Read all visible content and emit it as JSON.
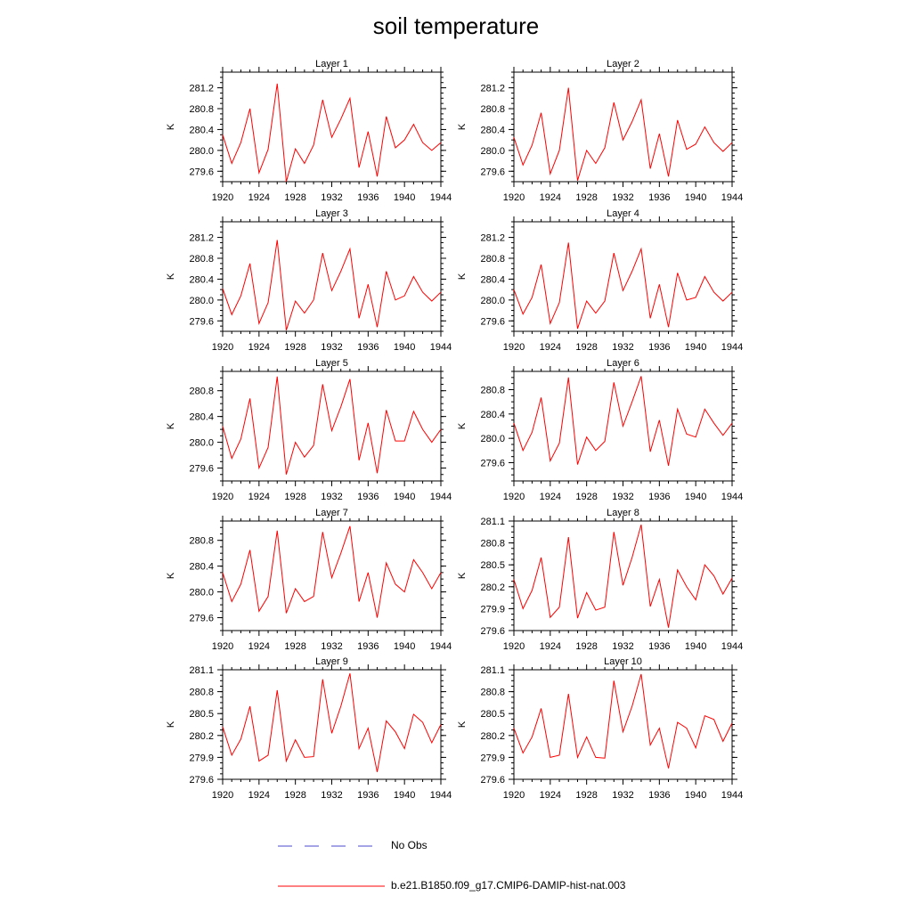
{
  "title": "soil temperature",
  "legend": {
    "obs_label": "No Obs",
    "obs_color": "#4a4acd",
    "model_label": "b.e21.B1850.f09_g17.CMIP6-DAMIP-hist-nat.003",
    "model_color": "#ff0000"
  },
  "chart_data": [
    {
      "type": "line",
      "title": "Layer 1",
      "ylabel": "K",
      "xlim": [
        1920,
        1944
      ],
      "ylim": [
        279.4,
        281.5
      ],
      "xticks": [
        1920,
        1924,
        1928,
        1932,
        1936,
        1940,
        1944
      ],
      "yticks": [
        279.6,
        280.0,
        280.4,
        280.8,
        281.2
      ],
      "x": [
        1920,
        1921,
        1922,
        1923,
        1924,
        1925,
        1926,
        1927,
        1928,
        1929,
        1930,
        1931,
        1932,
        1933,
        1934,
        1935,
        1936,
        1937,
        1938,
        1939,
        1940,
        1941,
        1942,
        1943,
        1944
      ],
      "series": [
        {
          "values": [
            280.3,
            279.75,
            280.15,
            280.8,
            279.57,
            280.02,
            281.28,
            279.4,
            280.03,
            279.75,
            280.1,
            280.97,
            280.25,
            280.6,
            281.0,
            279.67,
            280.36,
            279.5,
            280.65,
            280.05,
            280.2,
            280.5,
            280.15,
            280.0,
            280.15
          ]
        }
      ]
    },
    {
      "type": "line",
      "title": "Layer 2",
      "ylabel": "K",
      "xlim": [
        1920,
        1944
      ],
      "ylim": [
        279.4,
        281.5
      ],
      "xticks": [
        1920,
        1924,
        1928,
        1932,
        1936,
        1940,
        1944
      ],
      "yticks": [
        279.6,
        280.0,
        280.4,
        280.8,
        281.2
      ],
      "x": [
        1920,
        1921,
        1922,
        1923,
        1924,
        1925,
        1926,
        1927,
        1928,
        1929,
        1930,
        1931,
        1932,
        1933,
        1934,
        1935,
        1936,
        1937,
        1938,
        1939,
        1940,
        1941,
        1942,
        1943,
        1944
      ],
      "series": [
        {
          "values": [
            280.25,
            279.72,
            280.1,
            280.72,
            279.55,
            280.0,
            281.2,
            279.42,
            280.0,
            279.75,
            280.05,
            280.92,
            280.2,
            280.55,
            280.97,
            279.65,
            280.32,
            279.5,
            280.58,
            280.02,
            280.12,
            280.45,
            280.15,
            279.98,
            280.15
          ]
        }
      ]
    },
    {
      "type": "line",
      "title": "Layer 3",
      "ylabel": "K",
      "xlim": [
        1920,
        1944
      ],
      "ylim": [
        279.4,
        281.5
      ],
      "xticks": [
        1920,
        1924,
        1928,
        1932,
        1936,
        1940,
        1944
      ],
      "yticks": [
        279.6,
        280.0,
        280.4,
        280.8,
        281.2
      ],
      "x": [
        1920,
        1921,
        1922,
        1923,
        1924,
        1925,
        1926,
        1927,
        1928,
        1929,
        1930,
        1931,
        1932,
        1933,
        1934,
        1935,
        1936,
        1937,
        1938,
        1939,
        1940,
        1941,
        1942,
        1943,
        1944
      ],
      "series": [
        {
          "values": [
            280.22,
            279.72,
            280.08,
            280.7,
            279.55,
            279.95,
            281.15,
            279.42,
            279.98,
            279.75,
            280.0,
            280.9,
            280.18,
            280.55,
            280.98,
            279.65,
            280.3,
            279.48,
            280.55,
            280.0,
            280.08,
            280.45,
            280.15,
            279.98,
            280.15
          ]
        }
      ]
    },
    {
      "type": "line",
      "title": "Layer 4",
      "ylabel": "K",
      "xlim": [
        1920,
        1944
      ],
      "ylim": [
        279.4,
        281.5
      ],
      "xticks": [
        1920,
        1924,
        1928,
        1932,
        1936,
        1940,
        1944
      ],
      "yticks": [
        279.6,
        280.0,
        280.4,
        280.8,
        281.2
      ],
      "x": [
        1920,
        1921,
        1922,
        1923,
        1924,
        1925,
        1926,
        1927,
        1928,
        1929,
        1930,
        1931,
        1932,
        1933,
        1934,
        1935,
        1936,
        1937,
        1938,
        1939,
        1940,
        1941,
        1942,
        1943,
        1944
      ],
      "series": [
        {
          "values": [
            280.2,
            279.73,
            280.05,
            280.68,
            279.55,
            279.95,
            281.1,
            279.45,
            279.98,
            279.75,
            279.98,
            280.9,
            280.18,
            280.55,
            280.98,
            279.65,
            280.3,
            279.48,
            280.52,
            280.0,
            280.05,
            280.45,
            280.15,
            279.98,
            280.15
          ]
        }
      ]
    },
    {
      "type": "line",
      "title": "Layer 5",
      "ylabel": "K",
      "xlim": [
        1920,
        1944
      ],
      "ylim": [
        279.4,
        281.1
      ],
      "xticks": [
        1920,
        1924,
        1928,
        1932,
        1936,
        1940,
        1944
      ],
      "yticks": [
        279.6,
        280.0,
        280.4,
        280.8
      ],
      "x": [
        1920,
        1921,
        1922,
        1923,
        1924,
        1925,
        1926,
        1927,
        1928,
        1929,
        1930,
        1931,
        1932,
        1933,
        1934,
        1935,
        1936,
        1937,
        1938,
        1939,
        1940,
        1941,
        1942,
        1943,
        1944
      ],
      "series": [
        {
          "values": [
            280.25,
            279.75,
            280.05,
            280.68,
            279.6,
            279.92,
            281.02,
            279.5,
            280.0,
            279.77,
            279.95,
            280.9,
            280.18,
            280.55,
            280.98,
            279.72,
            280.3,
            279.52,
            280.5,
            280.02,
            280.02,
            280.48,
            280.2,
            280.0,
            280.2
          ]
        }
      ]
    },
    {
      "type": "line",
      "title": "Layer 6",
      "ylabel": "K",
      "xlim": [
        1920,
        1944
      ],
      "ylim": [
        279.3,
        281.1
      ],
      "xticks": [
        1920,
        1924,
        1928,
        1932,
        1936,
        1940,
        1944
      ],
      "yticks": [
        279.6,
        280.0,
        280.4,
        280.8
      ],
      "x": [
        1920,
        1921,
        1922,
        1923,
        1924,
        1925,
        1926,
        1927,
        1928,
        1929,
        1930,
        1931,
        1932,
        1933,
        1934,
        1935,
        1936,
        1937,
        1938,
        1939,
        1940,
        1941,
        1942,
        1943,
        1944
      ],
      "series": [
        {
          "values": [
            280.25,
            279.8,
            280.1,
            280.67,
            279.63,
            279.92,
            281.0,
            279.57,
            280.02,
            279.8,
            279.95,
            280.92,
            280.2,
            280.6,
            281.02,
            279.78,
            280.3,
            279.55,
            280.48,
            280.07,
            280.02,
            280.48,
            280.25,
            280.05,
            280.25
          ]
        }
      ]
    },
    {
      "type": "line",
      "title": "Layer 7",
      "ylabel": "K",
      "xlim": [
        1920,
        1944
      ],
      "ylim": [
        279.4,
        281.1
      ],
      "xticks": [
        1920,
        1924,
        1928,
        1932,
        1936,
        1940,
        1944
      ],
      "yticks": [
        279.6,
        280.0,
        280.4,
        280.8
      ],
      "x": [
        1920,
        1921,
        1922,
        1923,
        1924,
        1925,
        1926,
        1927,
        1928,
        1929,
        1930,
        1931,
        1932,
        1933,
        1934,
        1935,
        1936,
        1937,
        1938,
        1939,
        1940,
        1941,
        1942,
        1943,
        1944
      ],
      "series": [
        {
          "values": [
            280.3,
            279.85,
            280.12,
            280.65,
            279.7,
            279.93,
            280.95,
            279.67,
            280.05,
            279.85,
            279.93,
            280.93,
            280.22,
            280.6,
            281.02,
            279.85,
            280.3,
            279.6,
            280.45,
            280.12,
            280.0,
            280.5,
            280.3,
            280.05,
            280.3
          ]
        }
      ]
    },
    {
      "type": "line",
      "title": "Layer 8",
      "ylabel": "K",
      "xlim": [
        1920,
        1944
      ],
      "ylim": [
        279.6,
        281.1
      ],
      "xticks": [
        1920,
        1924,
        1928,
        1932,
        1936,
        1940,
        1944
      ],
      "yticks": [
        279.6,
        279.9,
        280.2,
        280.5,
        280.8,
        281.1
      ],
      "x": [
        1920,
        1921,
        1922,
        1923,
        1924,
        1925,
        1926,
        1927,
        1928,
        1929,
        1930,
        1931,
        1932,
        1933,
        1934,
        1935,
        1936,
        1937,
        1938,
        1939,
        1940,
        1941,
        1942,
        1943,
        1944
      ],
      "series": [
        {
          "values": [
            280.3,
            279.9,
            280.15,
            280.6,
            279.78,
            279.92,
            280.88,
            279.77,
            280.12,
            279.88,
            279.92,
            280.95,
            280.22,
            280.6,
            281.05,
            279.93,
            280.3,
            279.64,
            280.43,
            280.2,
            280.02,
            280.5,
            280.35,
            280.1,
            280.32
          ]
        }
      ]
    },
    {
      "type": "line",
      "title": "Layer 9",
      "ylabel": "K",
      "xlim": [
        1920,
        1944
      ],
      "ylim": [
        279.6,
        281.1
      ],
      "xticks": [
        1920,
        1924,
        1928,
        1932,
        1936,
        1940,
        1944
      ],
      "yticks": [
        279.6,
        279.9,
        280.2,
        280.5,
        280.8,
        281.1
      ],
      "x": [
        1920,
        1921,
        1922,
        1923,
        1924,
        1925,
        1926,
        1927,
        1928,
        1929,
        1930,
        1931,
        1932,
        1933,
        1934,
        1935,
        1936,
        1937,
        1938,
        1939,
        1940,
        1941,
        1942,
        1943,
        1944
      ],
      "series": [
        {
          "values": [
            280.32,
            279.93,
            280.15,
            280.6,
            279.85,
            279.93,
            280.82,
            279.85,
            280.14,
            279.9,
            279.91,
            280.97,
            280.23,
            280.6,
            281.05,
            280.02,
            280.3,
            279.7,
            280.4,
            280.25,
            280.02,
            280.49,
            280.38,
            280.1,
            280.35
          ]
        }
      ]
    },
    {
      "type": "line",
      "title": "Layer 10",
      "ylabel": "K",
      "xlim": [
        1920,
        1944
      ],
      "ylim": [
        279.6,
        281.1
      ],
      "xticks": [
        1920,
        1924,
        1928,
        1932,
        1936,
        1940,
        1944
      ],
      "yticks": [
        279.6,
        279.9,
        280.2,
        280.5,
        280.8,
        281.1
      ],
      "x": [
        1920,
        1921,
        1922,
        1923,
        1924,
        1925,
        1926,
        1927,
        1928,
        1929,
        1930,
        1931,
        1932,
        1933,
        1934,
        1935,
        1936,
        1937,
        1938,
        1939,
        1940,
        1941,
        1942,
        1943,
        1944
      ],
      "series": [
        {
          "values": [
            280.3,
            279.96,
            280.18,
            280.57,
            279.9,
            279.93,
            280.77,
            279.9,
            280.18,
            279.9,
            279.89,
            280.95,
            280.25,
            280.6,
            281.04,
            280.07,
            280.3,
            279.75,
            280.38,
            280.3,
            280.03,
            280.47,
            280.42,
            280.12,
            280.37
          ]
        }
      ]
    }
  ]
}
